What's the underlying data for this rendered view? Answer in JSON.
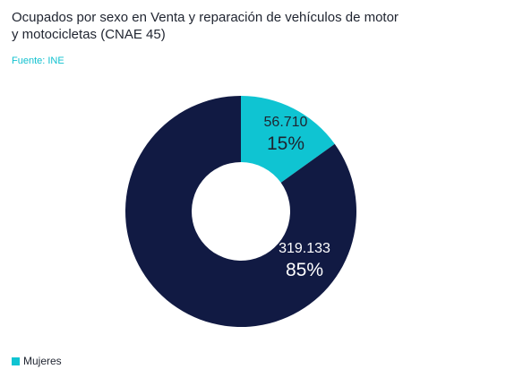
{
  "title_line1": "Ocupados por sexo en Venta y reparación de vehículos de motor",
  "title_line2": "y motocicletas (CNAE 45)",
  "source": "Fuente: INE",
  "colors": {
    "mujeres": "#0fc4d2",
    "hombres": "#111a43",
    "label_dark": "#1f2430",
    "label_light": "#ffffff"
  },
  "legend": [
    {
      "label": "Mujeres",
      "color": "#0fc4d2"
    }
  ],
  "chart_data": {
    "type": "pie",
    "donut": true,
    "slices": [
      {
        "name": "Mujeres",
        "value": 56710,
        "value_label": "56.710",
        "pct_label": "15%",
        "color": "#0fc4d2"
      },
      {
        "name": "",
        "value": 319133,
        "value_label": "319.133",
        "pct_label": "85%",
        "color": "#111a43"
      }
    ]
  }
}
